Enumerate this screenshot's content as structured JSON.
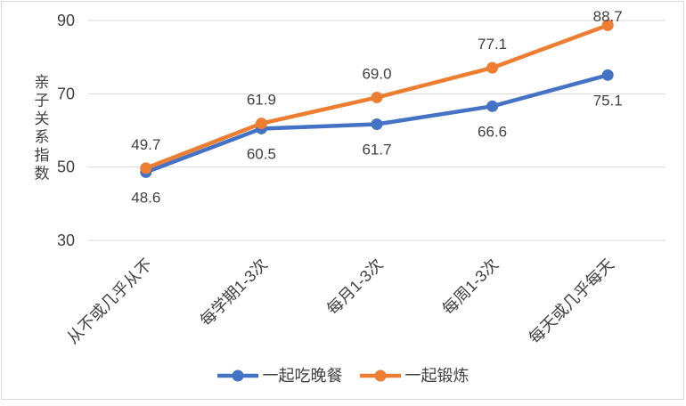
{
  "chart_data": {
    "type": "line",
    "title": "",
    "ylabel": "亲子关系指数",
    "categories": [
      "从不或几乎从不",
      "每学期1-3次",
      "每月1-3次",
      "每周1-3次",
      "每天或几乎每天"
    ],
    "series": [
      {
        "name": "一起吃晚餐",
        "color": "#4472C4",
        "values": [
          48.6,
          60.5,
          61.7,
          66.6,
          75.1
        ],
        "label_position": "below"
      },
      {
        "name": "一起锻炼",
        "color": "#ED7D31",
        "values": [
          49.7,
          61.9,
          69.0,
          77.1,
          88.7
        ],
        "label_position": "above"
      }
    ],
    "yticks": [
      30,
      50,
      70,
      90
    ],
    "ylim": [
      30,
      90
    ],
    "grid": true,
    "legend_position": "bottom",
    "colors": {
      "grid": "#D9D9D9",
      "text": "#404040",
      "border": "#D9D9D9"
    }
  }
}
